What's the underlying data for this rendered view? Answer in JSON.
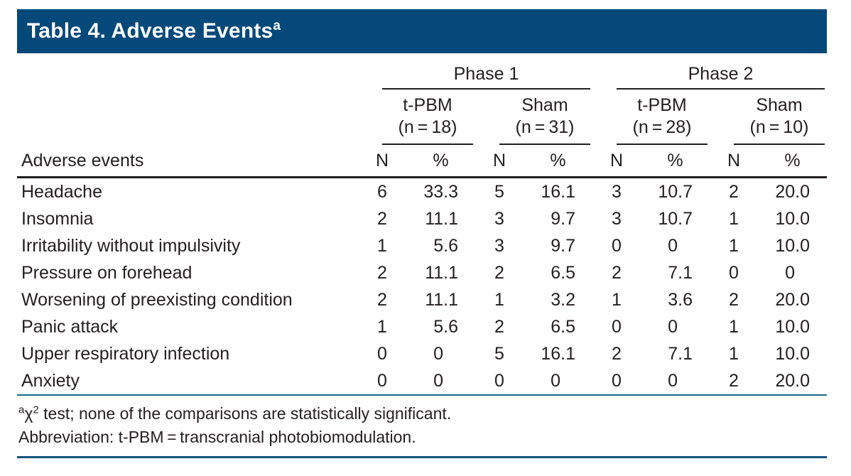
{
  "title": {
    "text": "Table 4. Adverse Events",
    "sup": "a"
  },
  "colors": {
    "header_bg": "#05497A",
    "rule_black": "#231F20",
    "rule_teal": "#1B6883",
    "rule_navy": "#16527E",
    "text": "#231F20"
  },
  "table": {
    "row_header": "Adverse events",
    "phases": [
      {
        "label": "Phase 1"
      },
      {
        "label": "Phase 2"
      }
    ],
    "groups": [
      {
        "name": "t-PBM",
        "n": "(n = 18)"
      },
      {
        "name": "Sham",
        "n": "(n = 31)"
      },
      {
        "name": "t-PBM",
        "n": "(n = 28)"
      },
      {
        "name": "Sham",
        "n": "(n = 10)"
      }
    ],
    "sub_headers": [
      "N",
      "%"
    ],
    "rows": [
      {
        "label": "Headache",
        "values": [
          "6",
          "33.3",
          "5",
          "16.1",
          "3",
          "10.7",
          "2",
          "20.0"
        ]
      },
      {
        "label": "Insomnia",
        "values": [
          "2",
          "11.1",
          "3",
          "9.7",
          "3",
          "10.7",
          "1",
          "10.0"
        ]
      },
      {
        "label": "Irritability without impulsivity",
        "values": [
          "1",
          "5.6",
          "3",
          "9.7",
          "0",
          "0",
          "1",
          "10.0"
        ]
      },
      {
        "label": "Pressure on forehead",
        "values": [
          "2",
          "11.1",
          "2",
          "6.5",
          "2",
          "7.1",
          "0",
          "0"
        ]
      },
      {
        "label": "Worsening of preexisting condition",
        "values": [
          "2",
          "11.1",
          "1",
          "3.2",
          "1",
          "3.6",
          "2",
          "20.0"
        ]
      },
      {
        "label": "Panic attack",
        "values": [
          "1",
          "5.6",
          "2",
          "6.5",
          "0",
          "0",
          "1",
          "10.0"
        ]
      },
      {
        "label": "Upper respiratory infection",
        "values": [
          "0",
          "0",
          "5",
          "16.1",
          "2",
          "7.1",
          "1",
          "10.0"
        ]
      },
      {
        "label": "Anxiety",
        "values": [
          "0",
          "0",
          "0",
          "0",
          "0",
          "0",
          "2",
          "20.0"
        ]
      }
    ]
  },
  "footnotes": {
    "note1": {
      "sup_a": "a",
      "chi": "χ",
      "sup_2": "2",
      "rest": " test; none of the comparisons are statistically significant."
    },
    "note2": "Abbreviation: t-PBM = transcranial photobiomodulation."
  }
}
